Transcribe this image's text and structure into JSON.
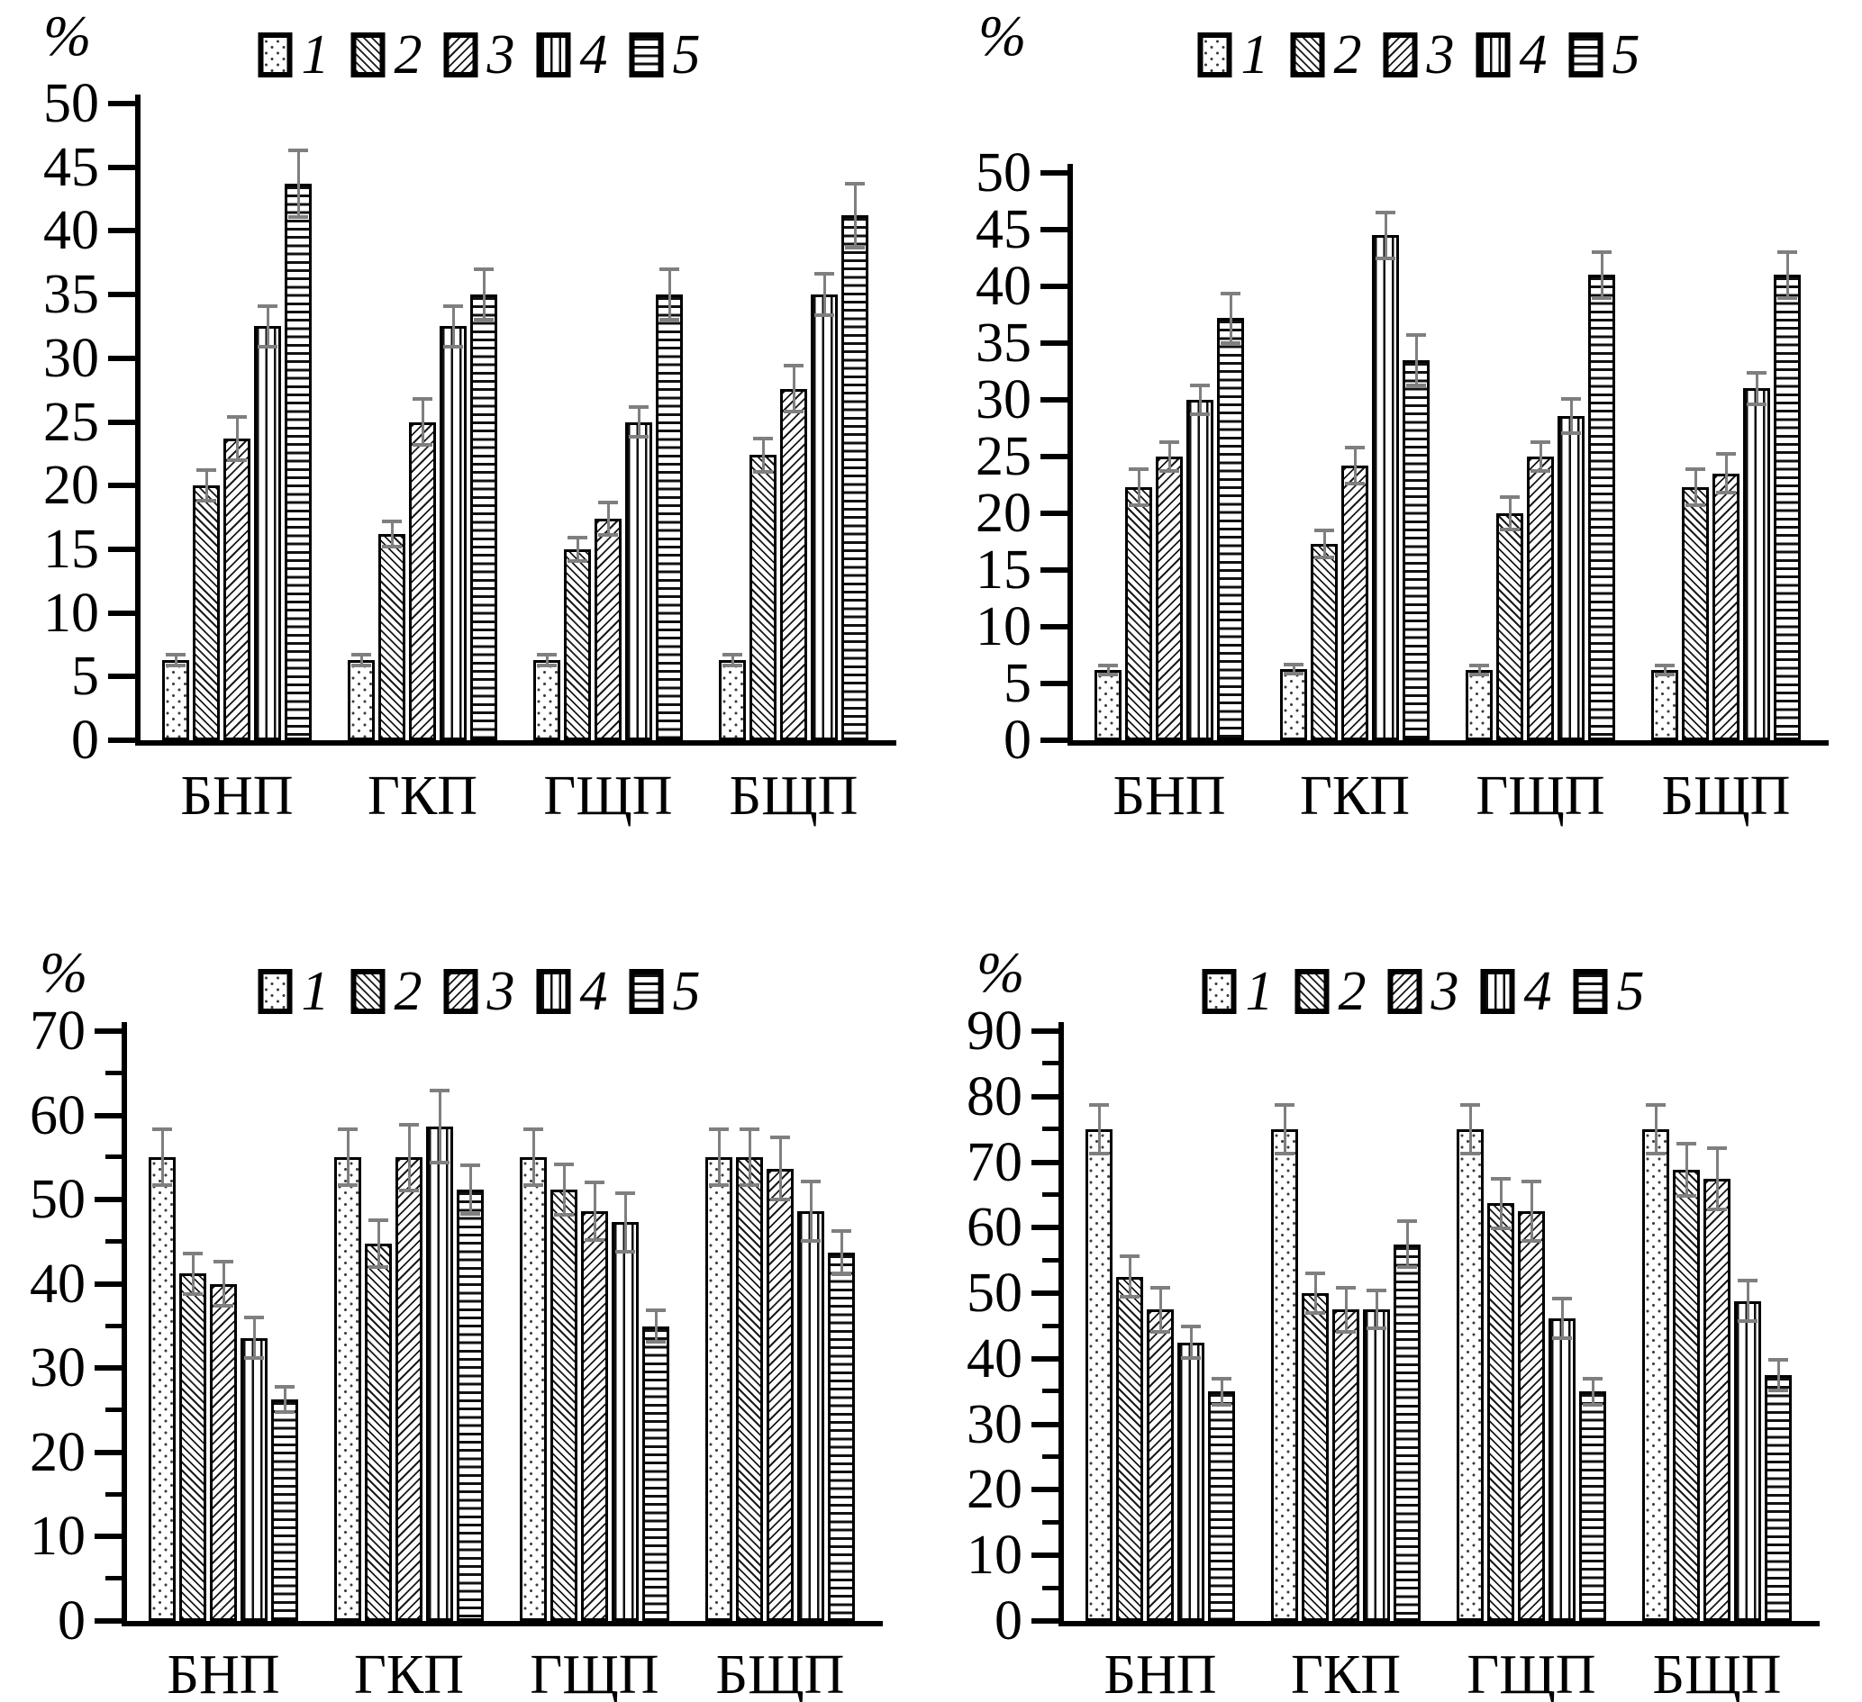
{
  "page": {
    "background": "#ffffff",
    "unit_label": "%"
  },
  "colors": {
    "axis": "#000000",
    "bar_border": "#000000",
    "error_bar": "#7f7f7f",
    "pattern_ink": "#1a1a1a"
  },
  "legend_labels": [
    "1",
    "2",
    "3",
    "4",
    "5"
  ],
  "series_patterns": [
    "dots",
    "diag-down",
    "diag-up",
    "vertical",
    "horizontal"
  ],
  "categories": [
    "БНП",
    "ГКП",
    "ГЩП",
    "БЩП"
  ],
  "chart_data": [
    {
      "id": "top-left",
      "type": "bar",
      "title": "",
      "ylabel": "%",
      "ylim": [
        0,
        50
      ],
      "ytick_step": 5,
      "minor_ticks": false,
      "grid": false,
      "legend_position": "top-center",
      "categories": [
        "БНП",
        "ГКП",
        "ГЩП",
        "БЩП"
      ],
      "series": [
        {
          "name": "1",
          "pattern": "dots",
          "values": [
            6.3,
            6.3,
            6.3,
            6.3
          ],
          "errors": [
            0.4,
            0.4,
            0.4,
            0.4
          ]
        },
        {
          "name": "2",
          "pattern": "diag-down",
          "values": [
            20.0,
            16.2,
            15.0,
            22.4
          ],
          "errors": [
            1.2,
            1.0,
            0.9,
            1.3
          ]
        },
        {
          "name": "3",
          "pattern": "diag-up",
          "values": [
            23.7,
            25.0,
            17.4,
            27.6
          ],
          "errors": [
            1.7,
            1.8,
            1.3,
            1.8
          ]
        },
        {
          "name": "4",
          "pattern": "vertical",
          "values": [
            32.5,
            32.5,
            25.0,
            35.0
          ],
          "errors": [
            1.6,
            1.6,
            1.2,
            1.6
          ]
        },
        {
          "name": "5",
          "pattern": "horizontal",
          "values": [
            43.7,
            35.0,
            35.0,
            41.2
          ],
          "errors": [
            2.6,
            2.0,
            2.0,
            2.5
          ]
        }
      ],
      "layout": {
        "axis_x": 150,
        "baseline_y": 822,
        "ymax_y": 115,
        "plot_len": 845,
        "legend_cx": 532,
        "legend_y": 30,
        "unit_x": 48,
        "unit_y": 8,
        "cat_label_y": 852
      }
    },
    {
      "id": "top-right",
      "type": "bar",
      "title": "",
      "ylabel": "%",
      "ylim": [
        0,
        50
      ],
      "ytick_step": 5,
      "minor_ticks": false,
      "grid": false,
      "legend_position": "top-center",
      "categories": [
        "БНП",
        "ГКП",
        "ГЩП",
        "БЩП"
      ],
      "series": [
        {
          "name": "1",
          "pattern": "dots",
          "values": [
            6.2,
            6.3,
            6.2,
            6.2
          ],
          "errors": [
            0.4,
            0.4,
            0.4,
            0.4
          ]
        },
        {
          "name": "2",
          "pattern": "diag-down",
          "values": [
            22.3,
            17.3,
            20.0,
            22.3
          ],
          "errors": [
            1.6,
            1.2,
            1.4,
            1.6
          ]
        },
        {
          "name": "3",
          "pattern": "diag-up",
          "values": [
            25.0,
            24.2,
            25.0,
            23.5
          ],
          "errors": [
            1.3,
            1.6,
            1.3,
            1.7
          ]
        },
        {
          "name": "4",
          "pattern": "vertical",
          "values": [
            30.0,
            44.5,
            28.6,
            31.0
          ],
          "errors": [
            1.3,
            2.0,
            1.5,
            1.4
          ]
        },
        {
          "name": "5",
          "pattern": "horizontal",
          "values": [
            37.2,
            33.5,
            41.0,
            41.0
          ],
          "errors": [
            2.2,
            2.2,
            2.0,
            2.0
          ]
        }
      ],
      "layout": {
        "axis_x": 1185,
        "baseline_y": 822,
        "ymax_y": 192,
        "plot_len": 845,
        "legend_cx": 1575,
        "legend_y": 30,
        "unit_x": 1086,
        "unit_y": 8,
        "cat_label_y": 852
      }
    },
    {
      "id": "bottom-left",
      "type": "bar",
      "title": "",
      "ylabel": "%",
      "ylim": [
        0,
        70
      ],
      "ytick_step": 10,
      "minor_ticks": true,
      "grid": false,
      "legend_position": "top-center",
      "categories": [
        "БНП",
        "ГКП",
        "ГЩП",
        "БЩП"
      ],
      "series": [
        {
          "name": "1",
          "pattern": "dots",
          "values": [
            55.0,
            55.0,
            55.0,
            55.0
          ],
          "errors": [
            3.3,
            3.3,
            3.3,
            3.3
          ]
        },
        {
          "name": "2",
          "pattern": "diag-down",
          "values": [
            41.2,
            44.8,
            51.2,
            55.0
          ],
          "errors": [
            2.4,
            2.8,
            3.0,
            3.3
          ]
        },
        {
          "name": "3",
          "pattern": "diag-up",
          "values": [
            40.0,
            55.0,
            48.6,
            53.7
          ],
          "errors": [
            2.6,
            3.9,
            3.4,
            3.7
          ]
        },
        {
          "name": "4",
          "pattern": "vertical",
          "values": [
            33.6,
            58.7,
            47.3,
            48.6
          ],
          "errors": [
            2.4,
            4.3,
            3.5,
            3.5
          ]
        },
        {
          "name": "5",
          "pattern": "horizontal",
          "values": [
            26.3,
            51.2,
            35.0,
            43.7
          ],
          "errors": [
            1.5,
            2.9,
            1.9,
            2.6
          ]
        }
      ],
      "layout": {
        "axis_x": 135,
        "baseline_y": 1800,
        "ymax_y": 1145,
        "plot_len": 845,
        "legend_cx": 532,
        "legend_y": 1070,
        "unit_x": 44,
        "unit_y": 1048,
        "cat_label_y": 1828
      }
    },
    {
      "id": "bottom-right",
      "type": "bar",
      "title": "",
      "ylabel": "%",
      "ylim": [
        0,
        90
      ],
      "ytick_step": 10,
      "minor_ticks": true,
      "grid": false,
      "legend_position": "top-center",
      "categories": [
        "БНП",
        "ГКП",
        "ГЩП",
        "БЩП"
      ],
      "series": [
        {
          "name": "1",
          "pattern": "dots",
          "values": [
            75.0,
            75.0,
            75.0,
            75.0
          ],
          "errors": [
            3.7,
            3.7,
            3.7,
            3.7
          ]
        },
        {
          "name": "2",
          "pattern": "diag-down",
          "values": [
            52.5,
            50.0,
            63.7,
            68.8
          ],
          "errors": [
            3.1,
            3.0,
            3.8,
            4.0
          ]
        },
        {
          "name": "3",
          "pattern": "diag-up",
          "values": [
            47.5,
            47.5,
            62.5,
            67.5
          ],
          "errors": [
            3.4,
            3.4,
            4.5,
            4.7
          ]
        },
        {
          "name": "4",
          "pattern": "vertical",
          "values": [
            42.5,
            47.5,
            46.2,
            48.8
          ],
          "errors": [
            2.4,
            2.9,
            3.0,
            3.1
          ]
        },
        {
          "name": "5",
          "pattern": "horizontal",
          "values": [
            35.0,
            57.5,
            35.0,
            37.5
          ],
          "errors": [
            2.0,
            3.5,
            2.0,
            2.3
          ]
        }
      ],
      "layout": {
        "axis_x": 1175,
        "baseline_y": 1800,
        "ymax_y": 1145,
        "plot_len": 845,
        "legend_cx": 1580,
        "legend_y": 1070,
        "unit_x": 1084,
        "unit_y": 1048,
        "cat_label_y": 1828
      }
    }
  ]
}
